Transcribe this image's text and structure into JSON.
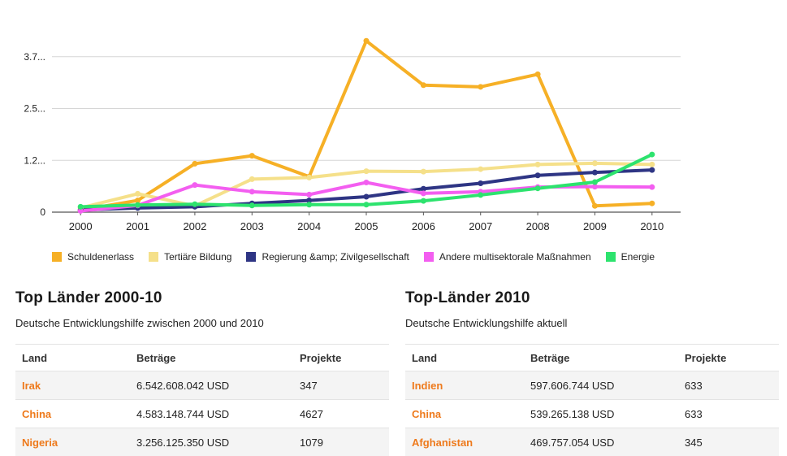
{
  "chart_data": {
    "type": "line",
    "x": [
      "2000",
      "2001",
      "2002",
      "2003",
      "2004",
      "2005",
      "2006",
      "2007",
      "2008",
      "2009",
      "2010"
    ],
    "y_ticks": [
      "0",
      "1.2...",
      "2.5...",
      "3.7..."
    ],
    "y_tick_values": [
      0,
      1.24,
      2.48,
      3.72
    ],
    "ylim": [
      0,
      4.3
    ],
    "grid": true,
    "legend_position": "bottom",
    "series": [
      {
        "name": "Schuldenerlass",
        "color": "#f6b026",
        "values": [
          0.05,
          0.28,
          1.16,
          1.35,
          0.85,
          4.1,
          3.04,
          3.0,
          3.3,
          0.15,
          0.21
        ]
      },
      {
        "name": "Tertiäre Bildung",
        "color": "#f5e08a",
        "values": [
          0.1,
          0.44,
          0.15,
          0.79,
          0.83,
          0.98,
          0.97,
          1.03,
          1.14,
          1.17,
          1.14
        ]
      },
      {
        "name": "Regierung &amp; Zivilgesellschaft",
        "color": "#2e3584",
        "values": [
          0.05,
          0.1,
          0.13,
          0.21,
          0.28,
          0.37,
          0.56,
          0.69,
          0.88,
          0.95,
          1.01
        ]
      },
      {
        "name": "Andere multisektorale Maßnahmen",
        "color": "#f35ef0",
        "values": [
          0.03,
          0.16,
          0.65,
          0.49,
          0.42,
          0.71,
          0.45,
          0.49,
          0.6,
          0.61,
          0.6
        ]
      },
      {
        "name": "Energie",
        "color": "#2de36e",
        "values": [
          0.13,
          0.17,
          0.19,
          0.16,
          0.18,
          0.18,
          0.27,
          0.41,
          0.57,
          0.72,
          1.38
        ]
      }
    ]
  },
  "left_panel": {
    "title": "Top Länder 2000-10",
    "subtitle": "Deutsche Entwicklungshilfe zwischen 2000 und 2010",
    "headers": [
      "Land",
      "Beträge",
      "Projekte"
    ],
    "rows": [
      [
        "Irak",
        "6.542.608.042 USD",
        "347"
      ],
      [
        "China",
        "4.583.148.744 USD",
        "4627"
      ],
      [
        "Nigeria",
        "3.256.125.350 USD",
        "1079"
      ]
    ]
  },
  "right_panel": {
    "title": "Top-Länder 2010",
    "subtitle": "Deutsche Entwicklungshilfe aktuell",
    "headers": [
      "Land",
      "Beträge",
      "Projekte"
    ],
    "rows": [
      [
        "Indien",
        "597.606.744 USD",
        "633"
      ],
      [
        "China",
        "539.265.138 USD",
        "633"
      ],
      [
        "Afghanistan",
        "469.757.054 USD",
        "345"
      ]
    ]
  }
}
